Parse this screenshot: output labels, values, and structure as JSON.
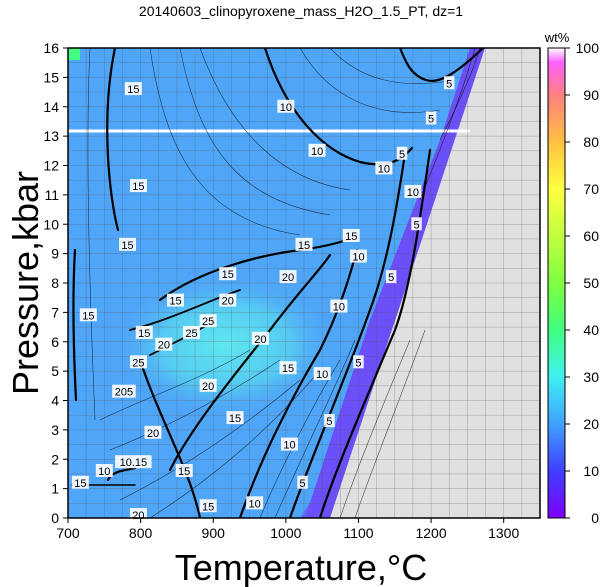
{
  "chart_data": {
    "type": "heatmap",
    "title": "20140603_clinopyroxene_mass_H2O_1.5_PT, dz=1",
    "xlabel": "Temperature,°C",
    "ylabel": "Pressure,kbar",
    "xlim": [
      700,
      1350
    ],
    "ylim": [
      0,
      16
    ],
    "x_ticks": [
      700,
      800,
      900,
      1000,
      1100,
      1200,
      1300
    ],
    "y_ticks": [
      0,
      1,
      2,
      3,
      4,
      5,
      6,
      7,
      8,
      9,
      10,
      11,
      12,
      13,
      14,
      15,
      16
    ],
    "grid": true,
    "colorbar": {
      "label": "wt%",
      "range": [
        0,
        100
      ],
      "ticks": [
        0,
        10,
        20,
        30,
        40,
        50,
        60,
        70,
        80,
        90,
        100
      ],
      "colors": [
        "#7f00ff",
        "#3f3fff",
        "#40a0ff",
        "#40f0f0",
        "#40ff80",
        "#7fff40",
        "#c0ff40",
        "#ffff40",
        "#ffc040",
        "#ff8080",
        "#ff60ff",
        "#ffffff"
      ]
    },
    "no_data_color": "#e0e0e0",
    "contour_levels": [
      5,
      10,
      15,
      20,
      25
    ],
    "contour_labels": [
      {
        "text": "15",
        "T": 790,
        "P": 14.6
      },
      {
        "text": "10",
        "T": 1000,
        "P": 14.0
      },
      {
        "text": "10",
        "T": 1043,
        "P": 12.5
      },
      {
        "text": "10",
        "T": 1135,
        "P": 11.9
      },
      {
        "text": "5",
        "T": 1225,
        "P": 14.8
      },
      {
        "text": "5",
        "T": 1200,
        "P": 13.6
      },
      {
        "text": "5",
        "T": 1160,
        "P": 12.4
      },
      {
        "text": "10",
        "T": 1175,
        "P": 11.1
      },
      {
        "text": "5",
        "T": 1180,
        "P": 10.0
      },
      {
        "text": "15",
        "T": 797,
        "P": 11.3
      },
      {
        "text": "15",
        "T": 782,
        "P": 9.3
      },
      {
        "text": "15",
        "T": 728,
        "P": 6.9
      },
      {
        "text": "15",
        "T": 1025,
        "P": 9.3
      },
      {
        "text": "15",
        "T": 1090,
        "P": 9.6
      },
      {
        "text": "10",
        "T": 1100,
        "P": 8.9
      },
      {
        "text": "5",
        "T": 1145,
        "P": 8.2
      },
      {
        "text": "15",
        "T": 920,
        "P": 8.3
      },
      {
        "text": "20",
        "T": 1003,
        "P": 8.2
      },
      {
        "text": "15",
        "T": 848,
        "P": 7.4
      },
      {
        "text": "20",
        "T": 920,
        "P": 7.4
      },
      {
        "text": "10",
        "T": 1073,
        "P": 7.2
      },
      {
        "text": "15",
        "T": 805,
        "P": 6.3
      },
      {
        "text": "20",
        "T": 832,
        "P": 5.9
      },
      {
        "text": "25",
        "T": 870,
        "P": 6.3
      },
      {
        "text": "25",
        "T": 893,
        "P": 6.7
      },
      {
        "text": "25",
        "T": 797,
        "P": 5.3
      },
      {
        "text": "20",
        "T": 965,
        "P": 6.1
      },
      {
        "text": "5",
        "T": 1100,
        "P": 5.3
      },
      {
        "text": "15",
        "T": 1003,
        "P": 5.1
      },
      {
        "text": "10",
        "T": 1050,
        "P": 4.9
      },
      {
        "text": "20",
        "T": 893,
        "P": 4.5
      },
      {
        "text": "205",
        "T": 777,
        "P": 4.3
      },
      {
        "text": "20",
        "T": 817,
        "P": 2.9
      },
      {
        "text": "5",
        "T": 1060,
        "P": 3.3
      },
      {
        "text": "15",
        "T": 930,
        "P": 3.4
      },
      {
        "text": "10",
        "T": 1005,
        "P": 2.5
      },
      {
        "text": "10.15",
        "T": 790,
        "P": 1.9
      },
      {
        "text": "10",
        "T": 750,
        "P": 1.6
      },
      {
        "text": "15",
        "T": 717,
        "P": 1.2
      },
      {
        "text": "15",
        "T": 860,
        "P": 1.6
      },
      {
        "text": "5",
        "T": 1023,
        "P": 1.2
      },
      {
        "text": "15",
        "T": 893,
        "P": 0.4
      },
      {
        "text": "10",
        "T": 957,
        "P": 0.5
      },
      {
        "text": "20",
        "T": 797,
        "P": 0.1
      }
    ]
  }
}
